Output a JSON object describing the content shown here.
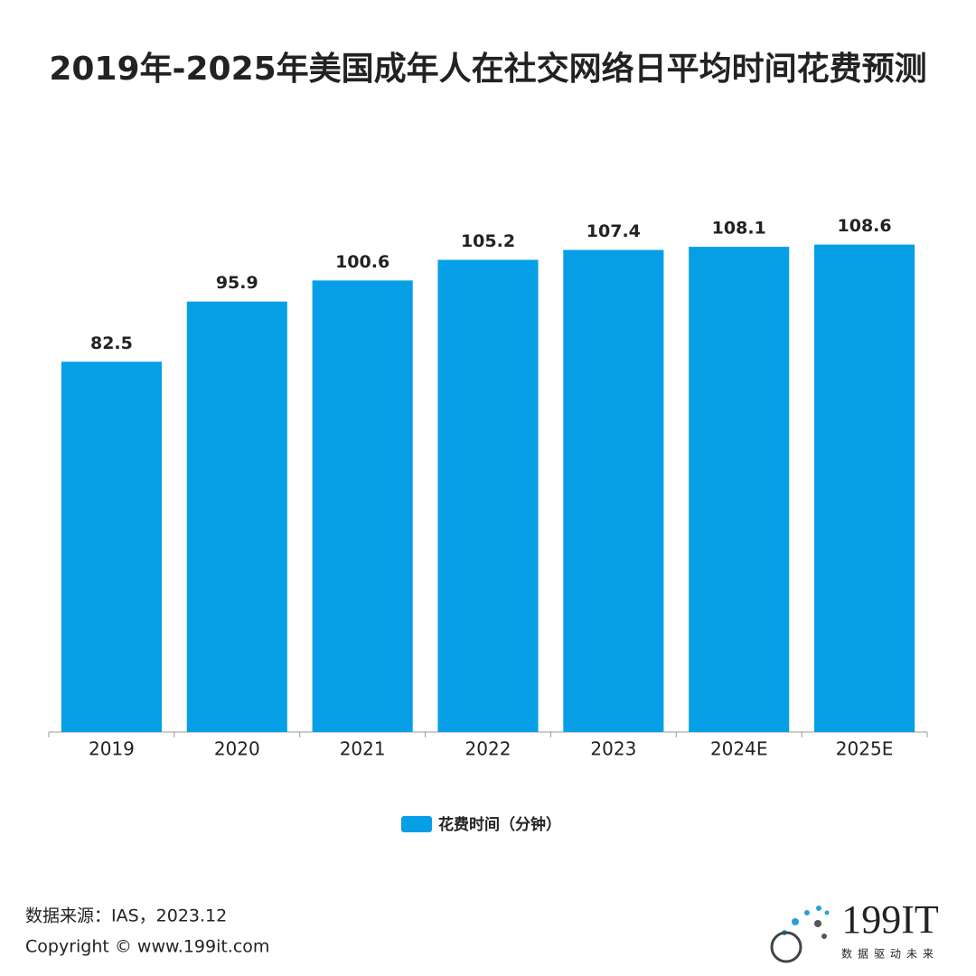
{
  "chart_data": {
    "type": "bar",
    "title": "2019年-2025年美国成年人在社交网络日平均时间花费预测",
    "categories": [
      "2019",
      "2020",
      "2021",
      "2022",
      "2023",
      "2024E",
      "2025E"
    ],
    "series": [
      {
        "name": "花费时间（分钟）",
        "color": "#069fe6",
        "values": [
          82.5,
          95.9,
          100.6,
          105.2,
          107.4,
          108.1,
          108.6
        ]
      }
    ],
    "ylim": [
      0,
      120
    ]
  },
  "footer": {
    "source": "数据来源：IAS，2023.12",
    "copyright": "Copyright © www.199it.com",
    "logo": "199IT",
    "slogan": "数据驱动未来"
  }
}
